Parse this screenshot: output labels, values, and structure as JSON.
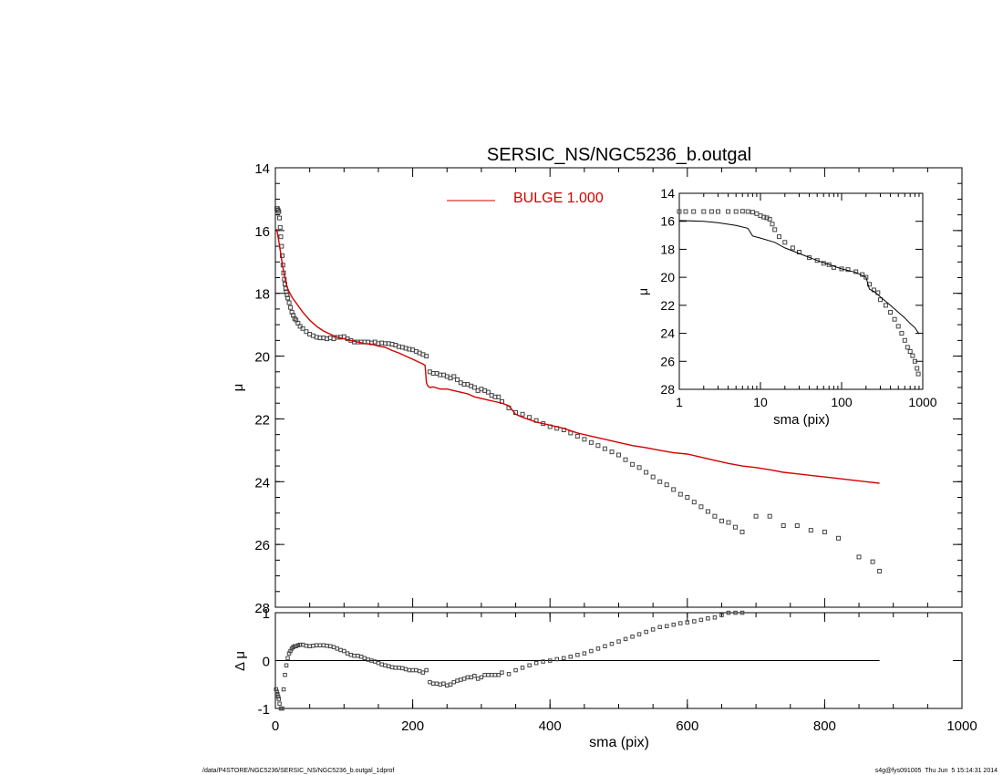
{
  "chart_data": [
    {
      "type": "scatter",
      "title": "SERSIC_NS/NGC5236_b.outgal",
      "ylabel": "μ",
      "xlim": [
        0,
        1000
      ],
      "ylim": [
        28,
        14
      ],
      "y_inverted": true,
      "yticks": [
        "14",
        "16",
        "18",
        "20",
        "22",
        "24",
        "26",
        "28"
      ],
      "grid": false,
      "legend": {
        "placement": "top-center",
        "entries": [
          {
            "label": "BULGE  1.000",
            "color": "#d40000"
          }
        ]
      },
      "series": [
        {
          "name": "",
          "style": "squares",
          "color": "#444444",
          "x": [
            2,
            3,
            4,
            5,
            6,
            7,
            8,
            9,
            10,
            11,
            12,
            13,
            14,
            15,
            16,
            17,
            18,
            20,
            22,
            24,
            26,
            28,
            30,
            33,
            36,
            40,
            45,
            50,
            55,
            60,
            65,
            70,
            75,
            80,
            85,
            90,
            95,
            100,
            105,
            110,
            115,
            120,
            125,
            130,
            135,
            140,
            145,
            150,
            155,
            160,
            165,
            170,
            175,
            180,
            185,
            190,
            195,
            200,
            205,
            210,
            215,
            220,
            225,
            230,
            235,
            240,
            245,
            250,
            255,
            260,
            265,
            270,
            275,
            280,
            285,
            290,
            295,
            300,
            305,
            310,
            315,
            320,
            325,
            330,
            340,
            350,
            360,
            370,
            380,
            390,
            400,
            410,
            420,
            430,
            440,
            450,
            460,
            470,
            480,
            490,
            500,
            510,
            520,
            530,
            540,
            550,
            560,
            570,
            580,
            590,
            600,
            610,
            620,
            630,
            640,
            650,
            660,
            670,
            680,
            700,
            720,
            740,
            760,
            780,
            800,
            820,
            850,
            870,
            880
          ],
          "y": [
            15.3,
            15.3,
            15.35,
            15.4,
            15.6,
            15.9,
            16.2,
            16.5,
            16.8,
            17.1,
            17.35,
            17.55,
            17.7,
            17.85,
            17.95,
            18.05,
            18.15,
            18.3,
            18.45,
            18.6,
            18.7,
            18.8,
            18.85,
            18.95,
            19.05,
            19.12,
            19.22,
            19.3,
            19.35,
            19.4,
            19.42,
            19.42,
            19.45,
            19.42,
            19.45,
            19.4,
            19.4,
            19.38,
            19.45,
            19.5,
            19.55,
            19.55,
            19.55,
            19.55,
            19.55,
            19.58,
            19.55,
            19.6,
            19.58,
            19.6,
            19.6,
            19.62,
            19.65,
            19.7,
            19.72,
            19.75,
            19.78,
            19.8,
            19.85,
            19.9,
            19.95,
            20.0,
            20.5,
            20.55,
            20.55,
            20.6,
            20.6,
            20.65,
            20.7,
            20.65,
            20.75,
            20.85,
            20.9,
            20.9,
            20.95,
            21.0,
            21.1,
            21.05,
            21.1,
            21.15,
            21.25,
            21.3,
            21.3,
            21.45,
            21.65,
            21.8,
            21.85,
            21.95,
            22.05,
            22.15,
            22.25,
            22.3,
            22.35,
            22.45,
            22.55,
            22.65,
            22.75,
            22.85,
            22.95,
            23.05,
            23.15,
            23.3,
            23.45,
            23.55,
            23.7,
            23.85,
            24.0,
            24.1,
            24.25,
            24.4,
            24.5,
            24.65,
            24.8,
            24.95,
            25.1,
            25.25,
            25.3,
            25.45,
            25.6,
            25.1,
            25.1,
            25.4,
            25.4,
            25.55,
            25.6,
            25.8,
            26.4,
            26.55,
            26.85
          ]
        },
        {
          "name": "",
          "style": "line",
          "color": "#d40000",
          "x": [
            2,
            5,
            8,
            10,
            12,
            14,
            16,
            18,
            20,
            25,
            30,
            40,
            50,
            60,
            70,
            80,
            90,
            100,
            110,
            120,
            130,
            140,
            150,
            160,
            170,
            180,
            190,
            200,
            210,
            215,
            218,
            220,
            222,
            225,
            230,
            240,
            250,
            260,
            270,
            280,
            290,
            300,
            310,
            320,
            330,
            340,
            350,
            360,
            380,
            400,
            420,
            440,
            460,
            480,
            500,
            520,
            540,
            560,
            580,
            600,
            620,
            640,
            660,
            680,
            700,
            720,
            740,
            760,
            780,
            800,
            820,
            840,
            860,
            880
          ],
          "y": [
            15.95,
            16.35,
            16.75,
            17.05,
            17.3,
            17.5,
            17.7,
            17.85,
            17.95,
            18.15,
            18.3,
            18.6,
            18.85,
            19.05,
            19.2,
            19.3,
            19.4,
            19.45,
            19.5,
            19.55,
            19.6,
            19.62,
            19.68,
            19.72,
            19.82,
            19.9,
            20.0,
            20.1,
            20.2,
            20.25,
            20.3,
            20.85,
            20.95,
            21.0,
            20.98,
            21.05,
            21.05,
            21.1,
            21.15,
            21.2,
            21.3,
            21.35,
            21.4,
            21.45,
            21.5,
            21.58,
            21.85,
            21.95,
            22.1,
            22.2,
            22.3,
            22.45,
            22.55,
            22.65,
            22.75,
            22.85,
            22.92,
            23.0,
            23.08,
            23.12,
            23.22,
            23.32,
            23.42,
            23.5,
            23.55,
            23.62,
            23.7,
            23.75,
            23.8,
            23.85,
            23.9,
            23.95,
            24.0,
            24.05
          ]
        }
      ]
    },
    {
      "type": "scatter",
      "xlabel": "sma (pix)",
      "ylabel": "Δ μ",
      "xlim": [
        0,
        1000
      ],
      "ylim": [
        -1,
        1
      ],
      "xticks": [
        "0",
        "200",
        "400",
        "600",
        "800",
        "1000"
      ],
      "yticks": [
        "1",
        "0",
        "-1"
      ],
      "grid": false,
      "reference_line": 0,
      "series": [
        {
          "name": "",
          "style": "squares",
          "color": "#444444",
          "x": [
            1,
            2,
            3,
            4,
            5,
            6,
            8,
            10,
            12,
            14,
            16,
            18,
            20,
            22,
            24,
            26,
            28,
            30,
            33,
            36,
            40,
            45,
            50,
            55,
            60,
            65,
            70,
            75,
            80,
            85,
            90,
            95,
            100,
            105,
            110,
            115,
            120,
            125,
            130,
            135,
            140,
            145,
            150,
            155,
            160,
            165,
            170,
            175,
            180,
            185,
            190,
            195,
            200,
            205,
            210,
            215,
            220,
            225,
            230,
            235,
            240,
            245,
            250,
            255,
            260,
            265,
            270,
            275,
            280,
            285,
            290,
            295,
            300,
            305,
            310,
            315,
            320,
            325,
            330,
            340,
            350,
            360,
            370,
            380,
            390,
            400,
            410,
            420,
            430,
            440,
            450,
            460,
            470,
            480,
            490,
            500,
            510,
            520,
            530,
            540,
            550,
            560,
            570,
            580,
            590,
            600,
            610,
            620,
            630,
            640,
            650,
            660,
            670,
            680
          ],
          "y": [
            -0.6,
            -0.65,
            -0.7,
            -0.75,
            -0.8,
            -0.9,
            -1.0,
            -1.0,
            -0.6,
            -0.3,
            -0.1,
            0.05,
            0.15,
            0.2,
            0.25,
            0.28,
            0.3,
            0.3,
            0.32,
            0.33,
            0.33,
            0.31,
            0.3,
            0.31,
            0.32,
            0.32,
            0.32,
            0.31,
            0.3,
            0.28,
            0.25,
            0.22,
            0.2,
            0.15,
            0.12,
            0.1,
            0.1,
            0.08,
            0.05,
            0.02,
            0.0,
            -0.02,
            -0.05,
            -0.08,
            -0.1,
            -0.12,
            -0.14,
            -0.15,
            -0.15,
            -0.16,
            -0.18,
            -0.2,
            -0.2,
            -0.2,
            -0.22,
            -0.25,
            -0.2,
            -0.45,
            -0.48,
            -0.48,
            -0.5,
            -0.48,
            -0.52,
            -0.5,
            -0.45,
            -0.42,
            -0.4,
            -0.38,
            -0.35,
            -0.35,
            -0.32,
            -0.38,
            -0.35,
            -0.3,
            -0.3,
            -0.3,
            -0.3,
            -0.3,
            -0.25,
            -0.28,
            -0.2,
            -0.15,
            -0.1,
            -0.05,
            -0.02,
            0.0,
            0.03,
            0.05,
            0.08,
            0.12,
            0.15,
            0.2,
            0.25,
            0.3,
            0.35,
            0.4,
            0.45,
            0.5,
            0.55,
            0.6,
            0.65,
            0.7,
            0.72,
            0.75,
            0.78,
            0.8,
            0.82,
            0.85,
            0.88,
            0.9,
            0.95,
            1.0,
            1.0,
            1.0
          ]
        }
      ]
    },
    {
      "type": "scatter",
      "xlabel": "sma (pix)",
      "ylabel": "μ",
      "xscale": "log",
      "xlim": [
        1,
        1000
      ],
      "ylim": [
        28,
        14
      ],
      "y_inverted": true,
      "xticks": [
        "1",
        "10",
        "100",
        "1000"
      ],
      "yticks": [
        "14",
        "16",
        "18",
        "20",
        "22",
        "24",
        "26",
        "28"
      ],
      "grid": false,
      "placement": "inset top-right",
      "series": [
        {
          "name": "",
          "style": "squares",
          "color": "#444444",
          "x": [
            1,
            1.2,
            1.5,
            2,
            2.5,
            3,
            4,
            5,
            6,
            7,
            8,
            9,
            10,
            11,
            12,
            13,
            14,
            15,
            17,
            20,
            25,
            30,
            40,
            50,
            60,
            70,
            80,
            100,
            120,
            150,
            180,
            200,
            220,
            250,
            280,
            300,
            350,
            400,
            450,
            500,
            550,
            600,
            650,
            700,
            750,
            800,
            850,
            880
          ],
          "y": [
            15.3,
            15.3,
            15.3,
            15.3,
            15.3,
            15.3,
            15.3,
            15.3,
            15.28,
            15.3,
            15.35,
            15.45,
            15.6,
            15.7,
            15.75,
            15.85,
            16.2,
            16.6,
            17.1,
            17.5,
            17.9,
            18.2,
            18.6,
            18.8,
            19.0,
            19.1,
            19.3,
            19.4,
            19.45,
            19.6,
            19.8,
            20.0,
            20.5,
            20.9,
            21.1,
            21.6,
            22.0,
            22.5,
            23.0,
            23.5,
            24.0,
            24.5,
            25.0,
            25.3,
            25.6,
            26.0,
            26.5,
            26.9
          ]
        },
        {
          "name": "",
          "style": "line",
          "color": "#000000",
          "x": [
            1,
            2,
            3,
            5,
            7,
            8,
            10,
            15,
            20,
            30,
            50,
            100,
            150,
            200,
            220,
            250,
            300,
            400,
            500,
            600,
            700,
            800,
            900
          ],
          "y": [
            15.95,
            16.0,
            16.1,
            16.3,
            16.5,
            17.05,
            17.2,
            17.5,
            17.9,
            18.3,
            18.8,
            19.4,
            19.65,
            20.0,
            20.85,
            21.0,
            21.4,
            22.0,
            22.5,
            22.9,
            23.3,
            23.6,
            24.05
          ]
        }
      ]
    }
  ],
  "footer": {
    "left": "/data/P4STORE/NGC5236/SERSIC_NS/NGC5236_b.outgal_1dprof",
    "right": "s4g@fys091005  Thu Jun  5 15:14:31 2014"
  }
}
